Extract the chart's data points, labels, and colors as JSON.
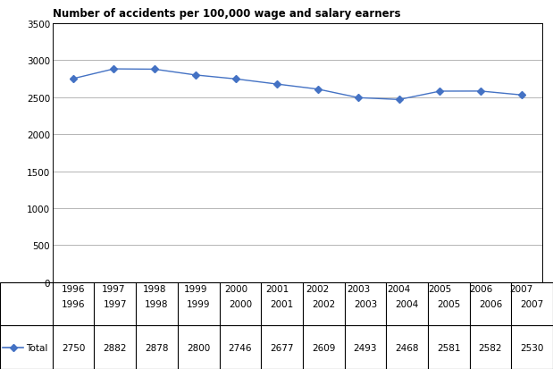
{
  "title": "Number of accidents per 100,000 wage and salary earners",
  "years": [
    1996,
    1997,
    1998,
    1999,
    2000,
    2001,
    2002,
    2003,
    2004,
    2005,
    2006,
    2007
  ],
  "values": [
    2750,
    2882,
    2878,
    2800,
    2746,
    2677,
    2609,
    2493,
    2468,
    2581,
    2582,
    2530
  ],
  "line_color": "#4472C4",
  "marker": "D",
  "marker_size": 4,
  "ylim": [
    0,
    3500
  ],
  "yticks": [
    0,
    500,
    1000,
    1500,
    2000,
    2500,
    3000,
    3500
  ],
  "legend_label": "Total",
  "background_color": "#ffffff",
  "grid_color": "#aaaaaa",
  "table_values": [
    "2750",
    "2882",
    "2878",
    "2800",
    "2746",
    "2677",
    "2609",
    "2493",
    "2468",
    "2581",
    "2582",
    "2530"
  ],
  "year_labels": [
    "1996",
    "1997",
    "1998",
    "1999",
    "2000",
    "2001",
    "2002",
    "2003",
    "2004",
    "2005",
    "2006",
    "2007"
  ]
}
